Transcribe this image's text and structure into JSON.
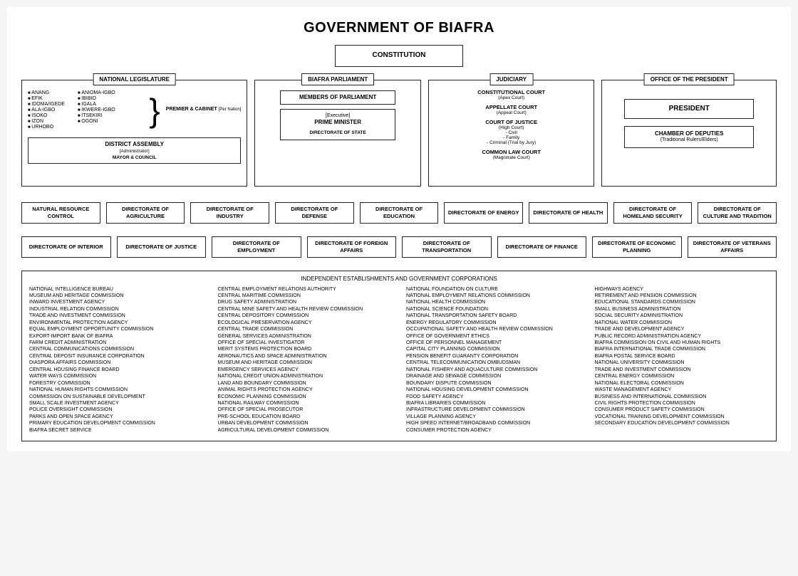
{
  "title": "GOVERNMENT OF BIAFRA",
  "colors": {
    "background": "#f5f5f3",
    "page": "#ffffff",
    "border": "#222222",
    "text": "#111111"
  },
  "constitution": "CONSTITUTION",
  "branches": {
    "legislature": {
      "title": "NATIONAL LEGISLATURE",
      "nations_col1": [
        "ANANG",
        "EFIK",
        "IDOMA/IGEDE",
        "ALA-IGBO",
        "ISOKO",
        "IZON",
        "URHOBO"
      ],
      "nations_col2": [
        "ANIOMA-IGBO",
        "IBIBIO",
        "IGALA",
        "IKWERE-IGBO",
        "ITSEKIRI",
        "OGONI"
      ],
      "premier": "PREMIER & CABINET",
      "premier_note": "[Per Nation]",
      "district_title": "DISTRICT ASSEMBLY",
      "district_role": "[Administrator]",
      "district_body": "MAYOR & COUNCIL"
    },
    "parliament": {
      "title": "BIAFRA PARLIAMENT",
      "members": "MEMBERS OF PARLIAMENT",
      "exec_note": "[Executive]",
      "pm": "PRIME MINISTER",
      "dos": "DIRECTORATE OF STATE"
    },
    "judiciary": {
      "title": "JUDICIARY",
      "courts": [
        {
          "main": "CONSTITUTIONAL COURT",
          "note": "(Apex Court)"
        },
        {
          "main": "APPELLATE COURT",
          "note": "(Appeal Court)"
        },
        {
          "main": "COURT OF JUSTICE",
          "note": "(High Court)",
          "subs": [
            "- Civil",
            "- Family",
            "- Criminal (Trial by Jury)"
          ]
        },
        {
          "main": "COMMON LAW COURT",
          "note": "(Magistrate Court)"
        }
      ]
    },
    "president": {
      "title": "OFFICE OF THE PRESIDENT",
      "president": "PRESIDENT",
      "chamber": "CHAMBER OF DEPUTIES",
      "chamber_note": "(Traditional Rulers/Elders)"
    }
  },
  "directorates_row1": [
    "NATURAL RESOURCE CONTROL",
    "DIRECTORATE OF AGRICULTURE",
    "DIRECTORATE OF INDUSTRY",
    "DIRECTORATE OF DEFENSE",
    "DIRECTORATE OF EDUCATION",
    "DIRECTORATE OF ENERGY",
    "DIRECTORATE OF HEALTH",
    "DIRECTORATE OF HOMELAND SECURITY",
    "DIRECTORATE OF CULTURE AND TRADITION"
  ],
  "directorates_row2": [
    "DIRECTORATE OF INTERIOR",
    "DIRECTORATE OF JUSTICE",
    "DIRECTORATE OF EMPLOYMENT",
    "DIRECTORATE OF FOREIGN AFFAIRS",
    "DIRECTORATE OF TRANSPORTATION",
    "DIRECTORATE OF FINANCE",
    "DIRECTORATE OF ECONOMIC PLANNING",
    "DIRECTORATE OF VETERANS AFFAIRS"
  ],
  "independent_title": "INDEPENDENT ESTABLISHMENTS AND GOVERNMENT CORPORATIONS",
  "independent_cols": [
    [
      "NATIONAL INTELLIGENCE BUREAU",
      "MUSEUM AND HERITAGE COMMISSION",
      "INWARD INVESTMENT AGENCY",
      "INDUSTRIAL RELATION COMMISSION",
      "TRADE AND INVESTMENT COMMISSION",
      "ENVIRONMENTAL PROTECTION AGENCY",
      "EQUAL EMPLOYMENT OPPORTUNITY COMMISSION",
      "EXPORT-IMPORT BANK OF BIAFRA",
      "FARM CREDIT ADMINISTRATION",
      "CENTRAL COMMUNICATIONS COMMISSION",
      "CENTRAL DEPOSIT INSURANCE CORPORATION",
      "DIASPORA AFFAIRS COMMISSION",
      "CENTRAL HOUSING FINANCE BOARD",
      "WATER WAYS COMMISSION",
      "FORESTRY COMMISSION",
      "NATIONAL HUMAN RIGHTS COMMISSION",
      "COMMISSION ON SUSTAINABLE DEVELOPMENT",
      "SMALL SCALE INVESTMENT AGENCY",
      "POLICE OVERSIGHT COMMISSION",
      "PARKS AND OPEN SPACE AGENCY",
      "PRIMARY EDUCATION DEVELOPMENT COMMISSION",
      "BIAFRA SECRET SERVICE"
    ],
    [
      "CENTRAL EMPLOYMENT RELATIONS AUTHORITY",
      "CENTRAL MARITIME COMMISSION",
      "DRUG SAFETY ADMINISTRATION",
      "CENTRAL MINE SAFETY AND HEALTH REVIEW COMMISSION",
      "CENTRAL DEPOSITORY COMMISSION",
      "ECOLOGICAL PRESERVATION AGENCY",
      "CENTRAL TRADE COMMISSION",
      "GENERAL SERVICES ADMINISTRATION",
      "OFFICE OF SPECIAL INVESTIGATOR",
      "MERIT SYSTEMS PROTECTION BOARD",
      "AERONAUTICS AND SPACE ADMINISTRATION",
      "MUSEUM AND HERITAGE COMMISSION",
      "EMERGENCY SERVICES AGENCY",
      "NATIONAL CREDIT UNION ADMINISTRATION",
      "LAND AND BOUNDARY COMMISSION",
      "ANIMAL RIGHTS PROTECTION AGENCY",
      "ECONOMIC PLANNING COMMISSION",
      "NATIONAL RAILWAY COMMISSION",
      "OFFICE OF SPECIAL PROSECUTOR",
      "PRE-SCHOOL EDUCATION BOARD",
      "URBAN DEVELOPMENT COMMISSION",
      "AGRICULTURAL DEVELOPMENT COMMISSION"
    ],
    [
      "NATIONAL FOUNDATION ON CULTURE",
      "NATIONAL EMPLOYMENT RELATIONS COMMISSION",
      "NATIONAL HEALTH COMMISSION",
      "NATIONAL SCIENCE FOUNDATION",
      "NATIONAL TRANSPORTATION SAFETY BOARD",
      "ENERGY REGULATORY COMMISSION",
      "OCCUPATIONAL SAFETY AND HEALTH REVIEW COMMISSION",
      "OFFICE OF GOVERNMENT ETHICS",
      "OFFICE OF PERSONNEL MANAGEMENT",
      "CAPITAL CITY PLANNING COMMISSION",
      "PENSION BENEFIT GUARANTY CORPORATION",
      "CENTRAL TELECOMMUNICATION OMBUDSMAN",
      "NATIONAL FISHERY AND AQUACULTURE COMMISSION",
      "DRAINAGE AND SEWAGE COMMISSION",
      "BOUNDARY DISPUTE COMMISSION",
      "NATIONAL HOUSING DEVELOPMENT COMMISSION",
      "FOOD SAFETY AGENCY",
      "BIAFRA LIBRARIES COMMISSION",
      "INFRASTRUCTURE DEVELOPMENT COMMISSION",
      "VILLAGE PLANNING AGENCY",
      "HIGH SPEED INTERNET/BROADBAND COMMISSION",
      "CONSUMER PROTECTION AGENCY"
    ],
    [
      "HIGHWAYS AGENCY",
      "RETIREMENT AND PENSION COMMISSION",
      "EDUCATIONAL STANDARDS COMMISSION",
      "SMALL BUSINESS ADMINISTRATION",
      "SOCIAL SECURITY ADMINISTRATION",
      "NATIONAL WATER COMMISSION",
      "TRADE AND DEVELOPMENT AGENCY",
      "PUBLIC RECORD ADMINISTRATION AGENCY",
      "BIAFRA COMMISSION ON CIVIL AND HUMAN RIGHTS",
      "BIAFRA INTERNATIONAL TRADE COMMISSION",
      "BIAFRA POSTAL SERVICE BOARD",
      "NATIONAL UNIVERSITY COMMISSION",
      "TRADE AND INVESTMENT COMMISSION",
      "CENTRAL ENERGY COMMISSION",
      "NATIONAL ELECTORAL COMMISSION",
      "WASTE MANAGEMENT AGENCY",
      "BUSINESS AND INTERNATIONAL COMMISSION",
      "CIVIL RIGHTS PROTECTION COMMISSION",
      "CONSUMER PRODUCT SAFETY COMMISSION",
      "VOCATIONAL TRAINING DEVELOPMENT COMMISSION",
      "SECONDARY EDUCATION DEVELOPMENT COMMISSION"
    ]
  ]
}
